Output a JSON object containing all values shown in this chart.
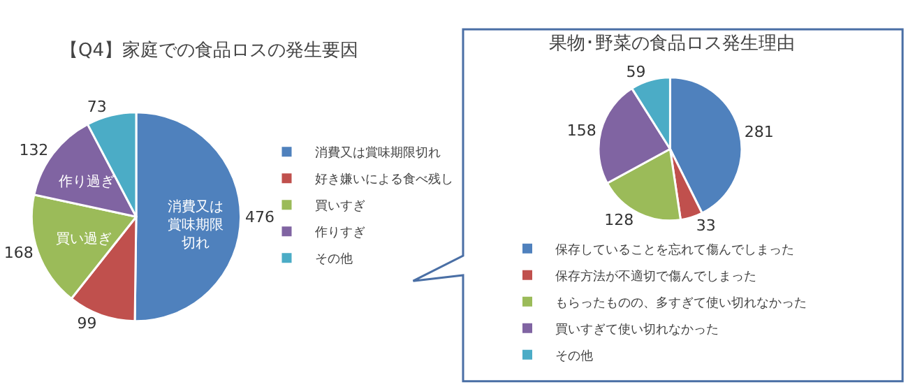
{
  "chart_data": [
    {
      "type": "pie",
      "title": "【Q4】家庭での食品ロスの発生要因",
      "categories": [
        "消費又は賞味期限切れ",
        "好き嫌いによる食べ残し",
        "買いすぎ",
        "作りすぎ",
        "その他"
      ],
      "values": [
        476,
        99,
        168,
        132,
        73
      ],
      "colors": [
        "#4f81bd",
        "#c0504d",
        "#9bbb59",
        "#8064a2",
        "#4bacc6"
      ],
      "data_labels": true,
      "legend": "right",
      "annotations": [
        "消費又は賞味期限切れ",
        "作り過ぎ",
        "買い過ぎ"
      ]
    },
    {
      "type": "pie",
      "title": "果物･野菜の食品ロス発生理由",
      "categories": [
        "保存していることを忘れて傷んでしまった",
        "保存方法が不適切で傷んでしまった",
        "もらったものの、多すぎて使い切れなかった",
        "買いすぎて使い切れなかった",
        "その他"
      ],
      "values": [
        281,
        33,
        128,
        158,
        59
      ],
      "colors": [
        "#4f81bd",
        "#c0504d",
        "#9bbb59",
        "#8064a2",
        "#4bacc6"
      ],
      "data_labels": true,
      "legend": "bottom"
    }
  ]
}
